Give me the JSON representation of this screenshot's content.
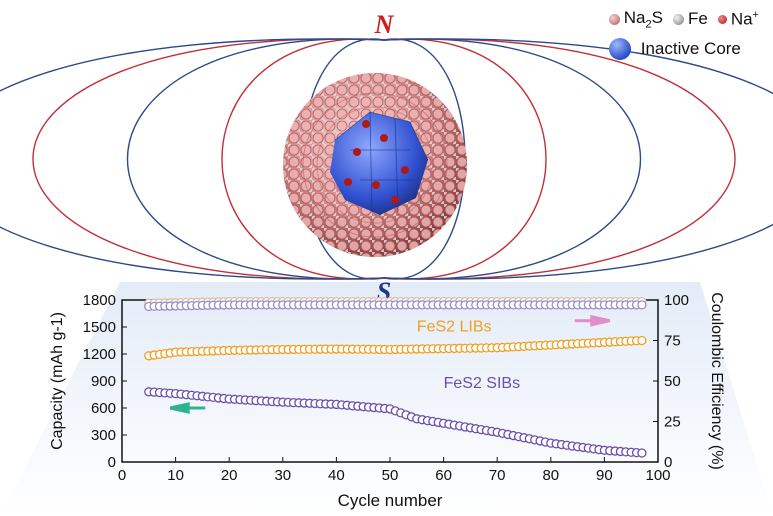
{
  "pole_north": "N",
  "pole_south": "S",
  "legend": {
    "na2s": "Na2S",
    "fe": "Fe",
    "na_ion": "Na+",
    "inactive_core": "Inactive Core"
  },
  "chart_data": {
    "type": "scatter",
    "xlabel": "Cycle number",
    "ylabel_left": "Capacity (mAh g-1)",
    "ylabel_right": "Coulombic Efficiency (%)",
    "xlim": [
      0,
      100
    ],
    "ylim_left": [
      0,
      1800
    ],
    "ylim_right": [
      0,
      100
    ],
    "x_ticks": [
      0,
      10,
      20,
      30,
      40,
      50,
      60,
      70,
      80,
      90,
      100
    ],
    "y_ticks_left": [
      0,
      300,
      600,
      900,
      1200,
      1500,
      1800
    ],
    "y_ticks_right": [
      0,
      25,
      50,
      75,
      100
    ],
    "series": [
      {
        "name": "FeS2 LIBs",
        "color": "#f0a020",
        "axis": "left",
        "points": [
          [
            5,
            1180
          ],
          [
            10,
            1220
          ],
          [
            20,
            1240
          ],
          [
            30,
            1250
          ],
          [
            40,
            1255
          ],
          [
            50,
            1250
          ],
          [
            60,
            1260
          ],
          [
            70,
            1270
          ],
          [
            80,
            1300
          ],
          [
            90,
            1330
          ],
          [
            97,
            1350
          ]
        ]
      },
      {
        "name": "FeS2 SIBs",
        "color": "#6a4fb0",
        "axis": "left",
        "points": [
          [
            5,
            780
          ],
          [
            10,
            760
          ],
          [
            20,
            700
          ],
          [
            30,
            665
          ],
          [
            40,
            640
          ],
          [
            50,
            590
          ],
          [
            55,
            480
          ],
          [
            60,
            430
          ],
          [
            70,
            330
          ],
          [
            80,
            210
          ],
          [
            90,
            130
          ],
          [
            97,
            100
          ]
        ]
      },
      {
        "name": "",
        "color": "#d7bfa8",
        "axis": "right",
        "points": [
          [
            5,
            98
          ],
          [
            20,
            99
          ],
          [
            40,
            99
          ],
          [
            60,
            99
          ],
          [
            80,
            99
          ],
          [
            97,
            99
          ]
        ]
      },
      {
        "name": "",
        "color": "#9a8ac8",
        "axis": "right",
        "points": [
          [
            5,
            96
          ],
          [
            20,
            97
          ],
          [
            40,
            97
          ],
          [
            60,
            97
          ],
          [
            80,
            97
          ],
          [
            97,
            97
          ]
        ]
      }
    ],
    "arrows": [
      {
        "direction": "left",
        "color": "#2db38f"
      },
      {
        "direction": "right",
        "color": "#e090c8"
      }
    ]
  }
}
